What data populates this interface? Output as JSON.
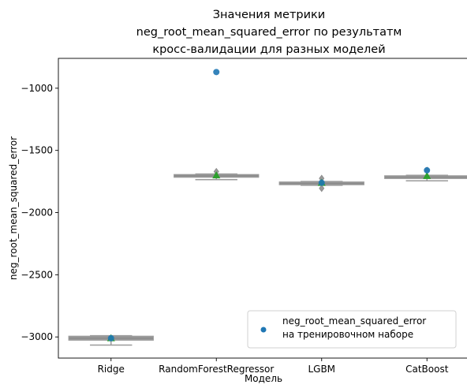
{
  "chart_data": {
    "type": "box",
    "title_lines": [
      "Значения метрики",
      "neg_root_mean_squared_error по результатм",
      "кросс-валидации для разных моделей"
    ],
    "xlabel": "Модель",
    "ylabel": "neg_root_mean_squared_error",
    "categories": [
      "Ridge",
      "RandomForestRegressor",
      "LGBM",
      "CatBoost"
    ],
    "ylim": [
      -3170,
      -760
    ],
    "yticks": [
      -3000,
      -2500,
      -2000,
      -1500,
      -1000
    ],
    "ytick_labels": [
      "−3000",
      "−2500",
      "−2000",
      "−1500",
      "−1000"
    ],
    "boxes": [
      {
        "category": "Ridge",
        "whisker_low": -3065,
        "q1": -3025,
        "median": -3010,
        "q3": -2995,
        "whisker_high": -2990,
        "mean": -3010,
        "outliers": []
      },
      {
        "category": "RandomForestRegressor",
        "whisker_low": -1735,
        "q1": -1715,
        "median": -1705,
        "q3": -1695,
        "whisker_high": -1690,
        "mean": -1700,
        "outliers": [
          -1670
        ]
      },
      {
        "category": "LGBM",
        "whisker_low": -1780,
        "q1": -1775,
        "median": -1765,
        "q3": -1755,
        "whisker_high": -1750,
        "mean": -1760,
        "outliers": [
          -1725,
          -1805
        ]
      },
      {
        "category": "CatBoost",
        "whisker_low": -1745,
        "q1": -1725,
        "median": -1715,
        "q3": -1705,
        "whisker_high": -1700,
        "mean": -1705,
        "outliers": [
          -1660
        ]
      }
    ],
    "train_points": [
      {
        "category": "Ridge",
        "value": -3010
      },
      {
        "category": "RandomForestRegressor",
        "value": -870
      },
      {
        "category": "LGBM",
        "value": -1760
      },
      {
        "category": "CatBoost",
        "value": -1660
      }
    ],
    "legend": {
      "placement": "lower-right",
      "entries": [
        {
          "label_lines": [
            "neg_root_mean_squared_error",
            "на тренировочном наборе"
          ]
        }
      ]
    },
    "colors": {
      "box": "#9a9a9a",
      "mean_marker": "#2ca02c",
      "train_point": "#1f77b4",
      "axes": "#000000"
    }
  }
}
